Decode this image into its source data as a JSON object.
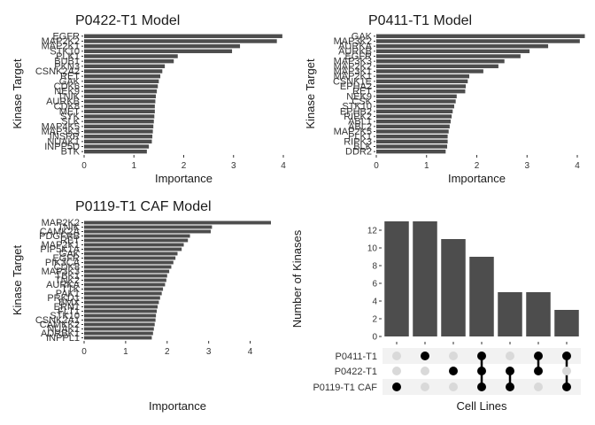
{
  "chart_data": [
    {
      "type": "bar",
      "orientation": "horizontal",
      "title": "P0422-T1 Model",
      "xlabel": "Importance",
      "ylabel": "Kinase Target",
      "xlim": [
        0,
        4
      ],
      "xticks": [
        "0",
        "1",
        "2",
        "3",
        "4"
      ],
      "categories": [
        "EGFR",
        "MAP2K2",
        "MAP2K1",
        "STK10",
        "PLK1",
        "BUB1",
        "PKN3",
        "CSNK2A2",
        "RET",
        "GAK",
        "CDK6",
        "NEK9",
        "TNIK",
        "AURKB",
        "CDK8",
        "MET",
        "SYK",
        "SLK",
        "MAP4K5",
        "MAP3K3",
        "INSRR",
        "NUAK1",
        "INPP5D",
        "BTK"
      ],
      "values": [
        3.98,
        3.87,
        3.13,
        2.97,
        1.88,
        1.8,
        1.62,
        1.57,
        1.53,
        1.5,
        1.48,
        1.46,
        1.44,
        1.43,
        1.42,
        1.42,
        1.41,
        1.4,
        1.39,
        1.38,
        1.37,
        1.36,
        1.3,
        1.26
      ],
      "color": "#4d4d4d",
      "grid": false,
      "legend": "none"
    },
    {
      "type": "bar",
      "orientation": "horizontal",
      "title": "P0411-T1 Model",
      "xlabel": "Importance",
      "ylabel": "Kinase Target",
      "xlim": [
        0,
        4
      ],
      "xticks": [
        "0",
        "1",
        "2",
        "3",
        "4"
      ],
      "categories": [
        "GAK",
        "MAP3K2",
        "AURKA",
        "AURKB",
        "EGFR",
        "MAP3K3",
        "MAP2K2",
        "MAP3K1",
        "MAP2K1",
        "CSNK1E",
        "EPHA2",
        "RET",
        "NEK9",
        "CSK",
        "STK10",
        "EPHB2",
        "RIPK2",
        "ABL1",
        "ABL2",
        "MAP2K5",
        "PLK1",
        "RIPK3",
        "BLK",
        "DDR2"
      ],
      "values": [
        4.15,
        4.05,
        3.42,
        3.05,
        2.87,
        2.55,
        2.43,
        2.13,
        1.85,
        1.82,
        1.78,
        1.77,
        1.6,
        1.58,
        1.55,
        1.52,
        1.5,
        1.48,
        1.46,
        1.44,
        1.42,
        1.42,
        1.41,
        1.38
      ],
      "color": "#4d4d4d",
      "grid": false,
      "legend": "none"
    },
    {
      "type": "bar",
      "orientation": "horizontal",
      "title": "P0119-T1 CAF Model",
      "xlabel": "Importance",
      "ylabel": "Kinase Target",
      "xlim": [
        0,
        4.5
      ],
      "xticks": [
        "0",
        "1",
        "2",
        "3",
        "4"
      ],
      "categories": [
        "MAP2K2",
        "TNIK",
        "CAMK2A",
        "PDGFRB",
        "RET",
        "MAP2K1",
        "PIP5K1A",
        "GAK",
        "EGFR",
        "PIK3CA",
        "CDK8",
        "MAP3K3",
        "TBK1",
        "TNK2",
        "AURKA",
        "TTK",
        "PAK1",
        "PRKD1",
        "BMX",
        "ERN1",
        "FLT1",
        "STK10",
        "CSNK2A1",
        "CAMKK2",
        "NUAK1",
        "ADRBK1",
        "INPPL1"
      ],
      "values": [
        4.5,
        3.08,
        3.05,
        2.55,
        2.5,
        2.4,
        2.35,
        2.25,
        2.2,
        2.15,
        2.1,
        2.05,
        2.0,
        1.98,
        1.95,
        1.9,
        1.87,
        1.83,
        1.8,
        1.77,
        1.75,
        1.73,
        1.72,
        1.7,
        1.68,
        1.66,
        1.63
      ],
      "color": "#4d4d4d",
      "grid": false,
      "legend": "none"
    },
    {
      "type": "bar",
      "subtype": "upset",
      "ylabel": "Number of Kinases",
      "xlabel": "Cell Lines",
      "ylim": [
        0,
        13
      ],
      "yticks": [
        "0",
        "2",
        "4",
        "6",
        "8",
        "10",
        "12"
      ],
      "sets": [
        "P0411-T1",
        "P0422-T1",
        "P0119-T1 CAF"
      ],
      "intersections": [
        {
          "members": [
            "P0119-T1 CAF"
          ],
          "value": 13
        },
        {
          "members": [
            "P0411-T1"
          ],
          "value": 13
        },
        {
          "members": [
            "P0422-T1"
          ],
          "value": 11
        },
        {
          "members": [
            "P0411-T1",
            "P0422-T1",
            "P0119-T1 CAF"
          ],
          "value": 9
        },
        {
          "members": [
            "P0422-T1",
            "P0119-T1 CAF"
          ],
          "value": 5
        },
        {
          "members": [
            "P0411-T1",
            "P0422-T1"
          ],
          "value": 5
        },
        {
          "members": [
            "P0411-T1",
            "P0119-T1 CAF"
          ],
          "value": 3
        }
      ],
      "bar_color": "#4d4d4d",
      "dot_on_color": "#000000",
      "dot_off_color": "#d9d9d9",
      "stripe_color": "#f2f2f2"
    }
  ]
}
